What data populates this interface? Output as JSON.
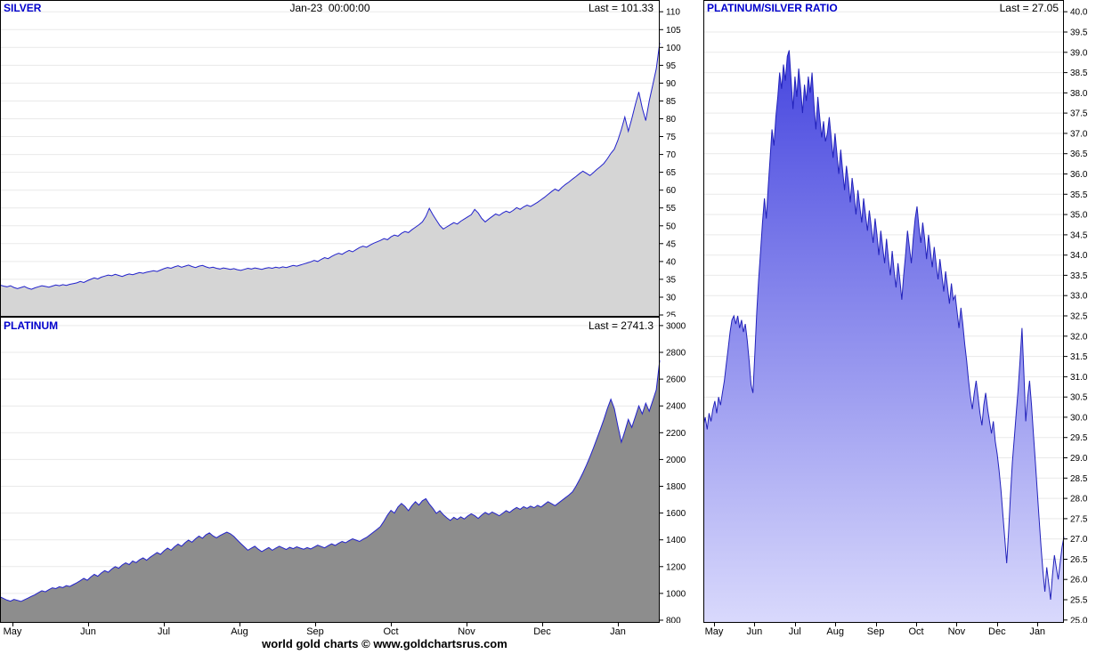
{
  "app": {
    "caption": "world gold charts © www.goldchartsrus.com"
  },
  "colors": {
    "title_blue": "#0000cc",
    "line_blue": "#2222cc",
    "silver_fill": "#d5d5d5",
    "platinum_fill": "#8d8d8d",
    "ratio_fill_top": "#4646df",
    "ratio_fill_bottom": "#d9d9fc",
    "grid": "#e9e9e9",
    "axis": "#000000"
  },
  "months": [
    "May",
    "Jun",
    "Jul",
    "Aug",
    "Sep",
    "Oct",
    "Nov",
    "Dec",
    "Jan"
  ],
  "chart_data": [
    {
      "id": "silver",
      "type": "area",
      "title": "SILVER",
      "timestamp": "Jan-23  00:00:00",
      "last_label": "Last = 101.33",
      "last": 101.33,
      "line_color": "#2222cc",
      "fill": "#d5d5d5",
      "ylim": [
        24.5,
        113.3
      ],
      "yticks": {
        "min": 25,
        "max": 110,
        "step": 5,
        "decimals": 0
      },
      "x_categories": [
        "May",
        "Jun",
        "Jul",
        "Aug",
        "Sep",
        "Oct",
        "Nov",
        "Dec",
        "Jan"
      ],
      "values": [
        33.4,
        33.1,
        32.9,
        33.2,
        32.7,
        32.4,
        32.7,
        33.0,
        32.5,
        32.2,
        32.6,
        32.9,
        33.2,
        33.0,
        32.8,
        33.1,
        33.4,
        33.2,
        33.5,
        33.3,
        33.6,
        33.8,
        34.0,
        34.4,
        34.1,
        34.6,
        35.0,
        35.4,
        35.1,
        35.6,
        35.9,
        36.2,
        36.0,
        36.4,
        36.1,
        35.8,
        36.2,
        36.5,
        36.3,
        36.6,
        36.9,
        36.7,
        37.0,
        37.2,
        37.4,
        37.2,
        37.6,
        38.0,
        38.3,
        38.1,
        38.5,
        38.8,
        38.4,
        38.7,
        39.0,
        38.6,
        38.3,
        38.7,
        38.9,
        38.5,
        38.2,
        38.4,
        38.1,
        37.9,
        38.2,
        38.0,
        37.8,
        38.0,
        37.7,
        37.5,
        37.8,
        38.1,
        37.9,
        38.2,
        38.0,
        37.8,
        38.1,
        38.3,
        38.1,
        38.4,
        38.2,
        38.5,
        38.3,
        38.6,
        38.9,
        38.7,
        39.0,
        39.3,
        39.6,
        39.9,
        40.3,
        40.0,
        40.6,
        41.1,
        40.8,
        41.4,
        41.9,
        42.3,
        42.0,
        42.6,
        43.1,
        42.7,
        43.3,
        43.9,
        44.3,
        44.0,
        44.6,
        45.1,
        45.5,
        45.9,
        46.4,
        46.1,
        46.9,
        47.4,
        47.1,
        47.9,
        48.4,
        48.1,
        48.9,
        49.6,
        50.3,
        51.1,
        52.6,
        54.9,
        53.1,
        51.6,
        50.1,
        49.1,
        49.7,
        50.3,
        50.9,
        50.5,
        51.3,
        51.9,
        52.5,
        53.1,
        54.6,
        53.6,
        52.1,
        51.1,
        51.9,
        52.6,
        53.3,
        52.9,
        53.6,
        54.1,
        53.7,
        54.3,
        55.1,
        54.6,
        55.3,
        55.8,
        55.4,
        56.0,
        56.6,
        57.3,
        58.0,
        58.8,
        59.6,
        60.3,
        59.8,
        60.8,
        61.6,
        62.3,
        63.1,
        63.8,
        64.6,
        65.3,
        64.7,
        64.1,
        64.9,
        65.8,
        66.6,
        67.5,
        68.8,
        70.3,
        71.5,
        74.0,
        77.0,
        80.5,
        76.5,
        80.0,
        84.0,
        87.5,
        83.0,
        79.5,
        85.0,
        89.5,
        94.0,
        101.33
      ]
    },
    {
      "id": "platinum",
      "type": "area",
      "title": "PLATINUM",
      "timestamp": "",
      "last_label": "Last = 2741.3",
      "last": 2741.3,
      "line_color": "#2222cc",
      "fill": "#8d8d8d",
      "ylim": [
        780,
        3066
      ],
      "yticks": {
        "min": 800,
        "max": 3000,
        "step": 200,
        "decimals": 0
      },
      "x_categories": [
        "May",
        "Jun",
        "Jul",
        "Aug",
        "Sep",
        "Oct",
        "Nov",
        "Dec",
        "Jan"
      ],
      "values": [
        975,
        962,
        950,
        942,
        955,
        948,
        940,
        952,
        965,
        978,
        990,
        1005,
        1020,
        1012,
        1028,
        1042,
        1036,
        1050,
        1044,
        1058,
        1052,
        1066,
        1080,
        1095,
        1112,
        1098,
        1122,
        1142,
        1128,
        1152,
        1170,
        1158,
        1182,
        1200,
        1188,
        1212,
        1228,
        1215,
        1242,
        1230,
        1252,
        1265,
        1248,
        1270,
        1288,
        1305,
        1292,
        1318,
        1338,
        1322,
        1348,
        1368,
        1352,
        1378,
        1398,
        1382,
        1408,
        1428,
        1412,
        1438,
        1452,
        1430,
        1415,
        1432,
        1445,
        1458,
        1445,
        1425,
        1398,
        1372,
        1348,
        1322,
        1338,
        1352,
        1330,
        1312,
        1328,
        1342,
        1322,
        1338,
        1352,
        1340,
        1328,
        1344,
        1334,
        1348,
        1338,
        1330,
        1342,
        1332,
        1346,
        1360,
        1350,
        1340,
        1356,
        1370,
        1358,
        1374,
        1388,
        1378,
        1394,
        1408,
        1398,
        1388,
        1404,
        1418,
        1438,
        1458,
        1478,
        1500,
        1540,
        1585,
        1620,
        1600,
        1645,
        1672,
        1650,
        1618,
        1655,
        1685,
        1660,
        1692,
        1708,
        1668,
        1635,
        1598,
        1618,
        1588,
        1565,
        1545,
        1568,
        1552,
        1572,
        1556,
        1578,
        1595,
        1580,
        1560,
        1585,
        1605,
        1590,
        1608,
        1595,
        1580,
        1598,
        1618,
        1605,
        1625,
        1642,
        1628,
        1648,
        1635,
        1652,
        1640,
        1658,
        1645,
        1665,
        1685,
        1670,
        1655,
        1675,
        1695,
        1715,
        1735,
        1758,
        1800,
        1848,
        1900,
        1958,
        2020,
        2085,
        2155,
        2225,
        2300,
        2380,
        2450,
        2380,
        2250,
        2130,
        2210,
        2300,
        2240,
        2320,
        2400,
        2340,
        2420,
        2360,
        2440,
        2520,
        2741.3
      ]
    },
    {
      "id": "ratio",
      "type": "area",
      "title": "PLATINUM/SILVER RATIO",
      "timestamp": "",
      "last_label": "Last = 27.05",
      "last": 27.05,
      "line_color": "#2222bb",
      "fill_gradient": [
        "#4646df",
        "#d9d9fc"
      ],
      "ylim": [
        24.93,
        40.29
      ],
      "yticks": {
        "min": 25.0,
        "max": 40.0,
        "step": 0.5,
        "decimals": 1
      },
      "x_categories": [
        "May",
        "Jun",
        "Jul",
        "Aug",
        "Sep",
        "Oct",
        "Nov",
        "Dec",
        "Jan"
      ],
      "values": [
        29.8,
        30.0,
        29.7,
        30.1,
        29.9,
        30.2,
        30.4,
        30.1,
        30.5,
        30.3,
        30.6,
        30.9,
        31.3,
        31.7,
        32.1,
        32.4,
        32.5,
        32.3,
        32.5,
        32.2,
        32.4,
        32.1,
        32.3,
        31.9,
        31.4,
        30.8,
        30.6,
        31.6,
        32.6,
        33.4,
        34.1,
        34.8,
        35.4,
        34.9,
        35.7,
        36.4,
        37.1,
        36.7,
        37.4,
        37.9,
        38.5,
        38.1,
        38.7,
        38.3,
        38.9,
        39.05,
        38.3,
        37.6,
        38.4,
        37.9,
        38.6,
        38.1,
        37.5,
        38.2,
        37.8,
        38.4,
        38.0,
        38.5,
        37.7,
        37.1,
        37.9,
        37.4,
        36.9,
        37.3,
        36.8,
        37.0,
        37.4,
        36.9,
        36.4,
        37.0,
        36.5,
        36.0,
        36.6,
        36.1,
        35.6,
        36.2,
        35.8,
        35.3,
        35.9,
        35.5,
        35.0,
        35.6,
        35.2,
        34.8,
        35.4,
        35.0,
        34.6,
        35.1,
        34.7,
        34.3,
        34.9,
        34.5,
        34.0,
        34.6,
        34.2,
        33.8,
        34.4,
        33.9,
        33.5,
        34.1,
        33.6,
        33.2,
        33.8,
        33.4,
        32.9,
        33.5,
        34.0,
        34.6,
        34.2,
        33.8,
        34.4,
        34.9,
        35.2,
        34.7,
        34.3,
        34.8,
        34.4,
        33.9,
        34.5,
        34.1,
        33.7,
        34.2,
        33.8,
        33.4,
        33.9,
        33.5,
        33.1,
        33.6,
        33.2,
        32.8,
        33.3,
        32.9,
        33.0,
        32.6,
        32.2,
        32.7,
        32.3,
        31.8,
        31.4,
        30.9,
        30.5,
        30.2,
        30.6,
        30.9,
        30.5,
        30.1,
        29.8,
        30.3,
        30.6,
        30.2,
        29.9,
        29.6,
        29.9,
        29.4,
        29.1,
        28.7,
        28.2,
        27.6,
        27.0,
        26.4,
        27.2,
        28.1,
        28.9,
        29.5,
        30.1,
        30.7,
        31.4,
        32.2,
        31.1,
        29.9,
        30.5,
        30.9,
        30.3,
        29.6,
        28.9,
        28.2,
        27.5,
        26.8,
        26.2,
        25.7,
        26.3,
        25.9,
        25.5,
        26.1,
        26.6,
        26.3,
        26.0,
        26.4,
        26.8,
        27.05
      ]
    }
  ]
}
